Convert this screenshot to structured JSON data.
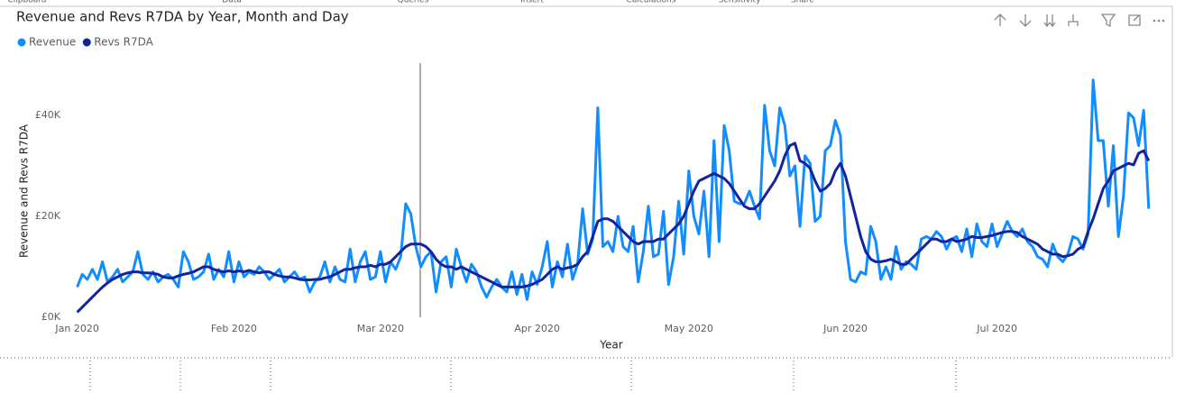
{
  "ribbon": [
    "Clipboard",
    "Data",
    "Queries",
    "Insert",
    "Calculations",
    "Sensitivity",
    "Share"
  ],
  "chart_data": {
    "type": "line",
    "title": "Revenue and Revs R7DA by Year, Month and Day",
    "x_label": "Year",
    "y_label": "Revenue and Revs R7DA",
    "legend": "top-left",
    "grid": false,
    "xlim": [
      -1,
      214
    ],
    "xticks": [
      {
        "value": 0,
        "label": "Jan 2020"
      },
      {
        "value": 31,
        "label": "Feb 2020"
      },
      {
        "value": 60,
        "label": "Mar 2020"
      },
      {
        "value": 91,
        "label": "Apr 2020"
      },
      {
        "value": 121,
        "label": "May 2020"
      },
      {
        "value": 152,
        "label": "Jun 2020"
      },
      {
        "value": 182,
        "label": "Jul 2020"
      }
    ],
    "ylim": [
      0,
      50000
    ],
    "yticks": [
      {
        "value": 0,
        "label": "£0K"
      },
      {
        "value": 20000,
        "label": "£20K"
      },
      {
        "value": 40000,
        "label": "£40K"
      }
    ],
    "x": [
      0,
      1,
      2,
      3,
      4,
      5,
      6,
      7,
      8,
      9,
      10,
      11,
      12,
      13,
      14,
      15,
      16,
      17,
      18,
      19,
      20,
      21,
      22,
      23,
      24,
      25,
      26,
      27,
      28,
      29,
      30,
      31,
      32,
      33,
      34,
      35,
      36,
      37,
      38,
      39,
      40,
      41,
      42,
      43,
      44,
      45,
      46,
      47,
      48,
      49,
      50,
      51,
      52,
      53,
      54,
      55,
      56,
      57,
      58,
      59,
      60,
      61,
      62,
      63,
      64,
      65,
      66,
      67,
      68,
      69,
      70,
      71,
      72,
      73,
      74,
      75,
      76,
      77,
      78,
      79,
      80,
      81,
      82,
      83,
      84,
      85,
      86,
      87,
      88,
      89,
      90,
      91,
      92,
      93,
      94,
      95,
      96,
      97,
      98,
      99,
      100,
      101,
      102,
      103,
      104,
      105,
      106,
      107,
      108,
      109,
      110,
      111,
      112,
      113,
      114,
      115,
      116,
      117,
      118,
      119,
      120,
      121,
      122,
      123,
      124,
      125,
      126,
      127,
      128,
      129,
      130,
      131,
      132,
      133,
      134,
      135,
      136,
      137,
      138,
      139,
      140,
      141,
      142,
      143,
      144,
      145,
      146,
      147,
      148,
      149,
      150,
      151,
      152,
      153,
      154,
      155,
      156,
      157,
      158,
      159,
      160,
      161,
      162,
      163,
      164,
      165,
      166,
      167,
      168,
      169,
      170,
      171,
      172,
      173,
      174,
      175,
      176,
      177,
      178,
      179,
      180,
      181,
      182,
      183,
      184,
      185,
      186,
      187,
      188,
      189,
      190,
      191,
      192,
      193,
      194,
      195,
      196,
      197,
      198,
      199,
      200,
      201,
      202,
      203,
      204,
      205,
      206,
      207,
      208,
      209,
      210,
      211,
      212
    ],
    "series": [
      {
        "name": "Revenue",
        "color": "#118dff",
        "width": 3,
        "values": [
          6000,
          8500,
          7500,
          9500,
          7500,
          11000,
          7000,
          8000,
          9500,
          7000,
          8000,
          9000,
          13000,
          8500,
          7500,
          9000,
          7000,
          8000,
          8500,
          7500,
          6000,
          13000,
          11000,
          7500,
          8000,
          9000,
          12500,
          7500,
          9500,
          8000,
          13000,
          7000,
          11000,
          8000,
          9000,
          8500,
          10000,
          9000,
          7500,
          8500,
          9500,
          7000,
          8000,
          9000,
          7500,
          8000,
          5000,
          7000,
          8000,
          11000,
          7000,
          10000,
          7500,
          7000,
          13500,
          7000,
          11000,
          13000,
          7500,
          8000,
          13000,
          7000,
          11000,
          9500,
          12000,
          22500,
          20500,
          14000,
          10000,
          12000,
          13000,
          5000,
          11000,
          12000,
          6000,
          13500,
          10000,
          7000,
          10500,
          9000,
          6000,
          4000,
          6000,
          7500,
          6000,
          5000,
          9000,
          4500,
          8500,
          3500,
          9000,
          6500,
          10000,
          15000,
          6000,
          11000,
          8000,
          14500,
          7500,
          10500,
          21500,
          12500,
          15500,
          41500,
          14000,
          15000,
          13000,
          20000,
          14000,
          13000,
          18000,
          7000,
          13000,
          22000,
          12000,
          12500,
          21000,
          6500,
          12000,
          23000,
          12500,
          29000,
          20000,
          16500,
          25000,
          12000,
          35000,
          15000,
          38000,
          33000,
          23000,
          22500,
          22500,
          25000,
          22000,
          19500,
          42000,
          33000,
          30000,
          41500,
          38000,
          28000,
          30000,
          18000,
          32000,
          30500,
          19000,
          20000,
          33000,
          34000,
          39000,
          36000,
          15000,
          7500,
          7000,
          9000,
          8500,
          18000,
          15000,
          7500,
          10000,
          7500,
          14000,
          9500,
          11000,
          10500,
          9500,
          15500,
          16000,
          15500,
          17000,
          16000,
          13500,
          15500,
          16000,
          13000,
          17500,
          12000,
          18500,
          15000,
          14000,
          18500,
          14000,
          16500,
          19000,
          17000,
          16000,
          17500,
          15000,
          14000,
          12000,
          11500,
          10000,
          14500,
          12000,
          11000,
          12500,
          16000,
          15500,
          13500,
          16500,
          47000,
          35000,
          35000,
          22000,
          34000,
          16000,
          24000,
          40500,
          39500,
          34000,
          41000,
          21500
        ]
      },
      {
        "name": "Revs R7DA",
        "color": "#12239e",
        "width": 3,
        "values": [
          1000,
          2000,
          3000,
          4000,
          5000,
          6000,
          6800,
          7500,
          8000,
          8500,
          8800,
          9000,
          9000,
          8800,
          8800,
          8700,
          8500,
          8000,
          7800,
          7800,
          8200,
          8500,
          8700,
          9000,
          9500,
          10000,
          10000,
          9500,
          9200,
          9000,
          9200,
          9000,
          9200,
          9000,
          9300,
          9000,
          8800,
          9000,
          9000,
          8500,
          8200,
          8000,
          8000,
          7800,
          7500,
          7400,
          7400,
          7500,
          7500,
          7800,
          8000,
          8500,
          9000,
          9500,
          9500,
          9800,
          10000,
          10000,
          10300,
          10000,
          10500,
          10500,
          11000,
          12000,
          13000,
          14000,
          14500,
          14500,
          14500,
          14000,
          13000,
          11500,
          10500,
          10000,
          10000,
          9500,
          10000,
          9500,
          9000,
          8500,
          8000,
          7500,
          7000,
          6500,
          6000,
          6000,
          6000,
          6000,
          6000,
          6200,
          6500,
          7000,
          7500,
          8500,
          9500,
          10000,
          9500,
          9800,
          10000,
          10500,
          12000,
          13000,
          16000,
          19000,
          19500,
          19500,
          19000,
          18000,
          17000,
          16000,
          15000,
          14500,
          15000,
          15000,
          15000,
          15500,
          15500,
          16500,
          17500,
          18500,
          20000,
          22500,
          25000,
          27000,
          27500,
          28000,
          28500,
          28000,
          27500,
          26500,
          25000,
          23500,
          22000,
          21500,
          21500,
          22500,
          24000,
          25500,
          27000,
          29000,
          32000,
          34000,
          34500,
          31000,
          30500,
          29500,
          27000,
          25000,
          25500,
          26500,
          29000,
          30500,
          28000,
          24000,
          20000,
          16000,
          13000,
          11500,
          11000,
          11000,
          11200,
          11500,
          11000,
          10500,
          10500,
          11500,
          12500,
          13500,
          14500,
          15500,
          15500,
          15000,
          15000,
          15500,
          15000,
          15200,
          15500,
          16000,
          15800,
          15800,
          16000,
          16200,
          16500,
          16800,
          17000,
          17000,
          16800,
          16000,
          15500,
          15000,
          14500,
          13500,
          13000,
          12500,
          12500,
          12000,
          12200,
          12500,
          13500,
          14000,
          17000,
          19500,
          22500,
          25500,
          27000,
          29000,
          29500,
          30000,
          30500,
          30200,
          32500,
          33000,
          31000
        ]
      }
    ]
  }
}
